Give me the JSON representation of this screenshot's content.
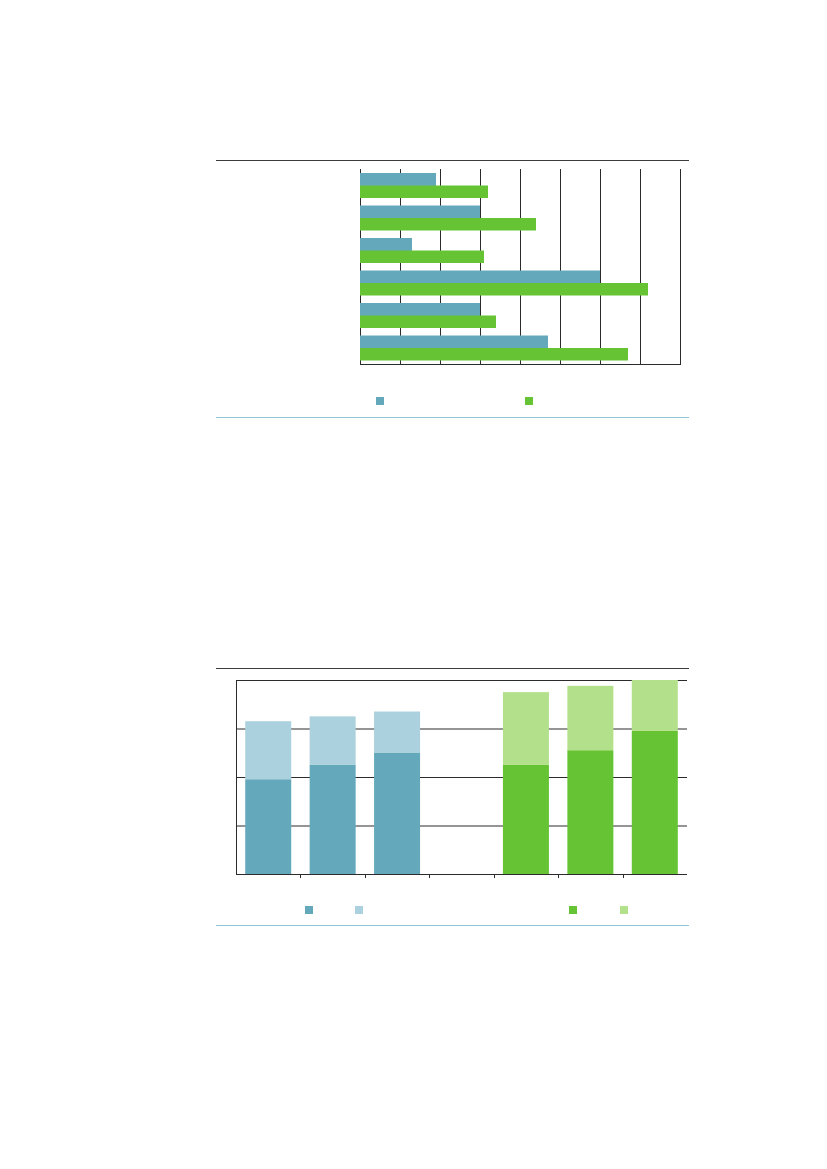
{
  "colors": {
    "teal": "#64a8bc",
    "teal_light": "#aad1dd",
    "green": "#66c333",
    "green_light": "#b3e08b",
    "rule": "#3c3c3c",
    "rule_bottom": "#8fc6d4",
    "grid": "#2b2b2b"
  },
  "chart_data": [
    {
      "type": "bar",
      "orientation": "horizontal",
      "xlim": [
        0,
        8
      ],
      "grid": true,
      "legend_position": "bottom",
      "categories": [
        "",
        "",
        "",
        "",
        "",
        ""
      ],
      "series": [
        {
          "color": "#64a8bc",
          "values": [
            1.9,
            3.0,
            1.3,
            6.0,
            3.0,
            4.7
          ]
        },
        {
          "color": "#66c333",
          "values": [
            3.2,
            4.4,
            3.1,
            7.2,
            3.4,
            6.7
          ]
        }
      ]
    },
    {
      "type": "bar",
      "stacked": true,
      "ylim": [
        0,
        4
      ],
      "grid": true,
      "legend_position": "bottom",
      "groups": [
        {
          "categories": [
            "",
            "",
            ""
          ],
          "series": [
            {
              "color": "#64a8bc",
              "values": [
                1.95,
                2.25,
                2.5
              ]
            },
            {
              "color": "#aad1dd",
              "values": [
                1.2,
                1.0,
                0.85
              ]
            }
          ]
        },
        {
          "categories": [
            "",
            "",
            ""
          ],
          "series": [
            {
              "color": "#66c333",
              "values": [
                2.25,
                2.55,
                2.95
              ]
            },
            {
              "color": "#b3e08b",
              "values": [
                1.5,
                1.33,
                1.05
              ]
            }
          ]
        }
      ]
    }
  ]
}
